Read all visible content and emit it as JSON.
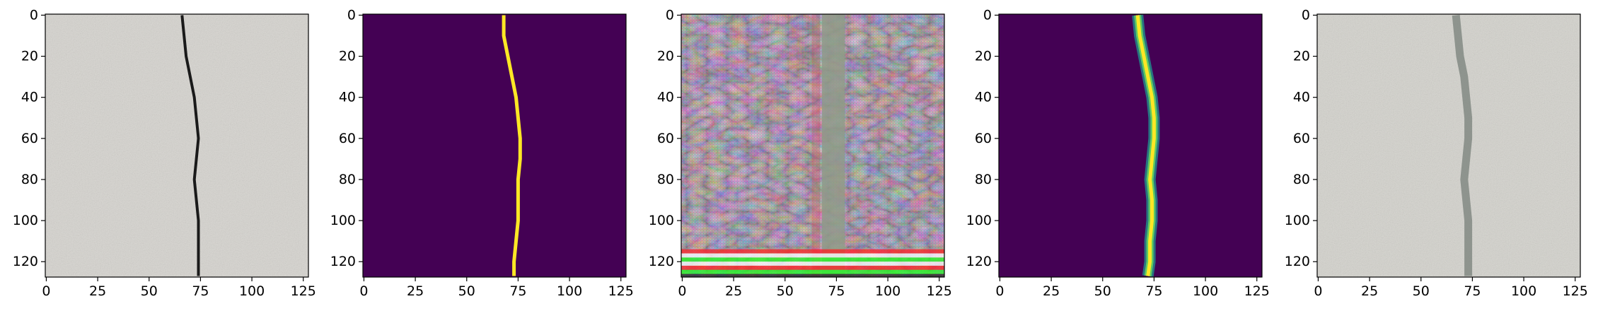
{
  "figure": {
    "panel_count": 5
  },
  "chart_data": [
    {
      "type": "heatmap",
      "content": "grayscale concrete photo with dark crack",
      "xlim": [
        0,
        127
      ],
      "ylim": [
        127,
        0
      ],
      "xticks": [
        0,
        25,
        50,
        75,
        100,
        125
      ],
      "yticks": [
        0,
        20,
        40,
        60,
        80,
        100,
        120
      ],
      "crack_path": [
        [
          66,
          0
        ],
        [
          67,
          10
        ],
        [
          68,
          20
        ],
        [
          70,
          30
        ],
        [
          72,
          40
        ],
        [
          73,
          50
        ],
        [
          74,
          60
        ],
        [
          73,
          70
        ],
        [
          72,
          80
        ],
        [
          73,
          90
        ],
        [
          74,
          100
        ],
        [
          74,
          110
        ],
        [
          74,
          120
        ],
        [
          74,
          127
        ]
      ],
      "colors": {
        "background": "#d6d4cf",
        "crack": "#1a1a1a"
      }
    },
    {
      "type": "heatmap",
      "content": "binary crack mask",
      "xlim": [
        0,
        127
      ],
      "ylim": [
        127,
        0
      ],
      "xticks": [
        0,
        25,
        50,
        75,
        100,
        125
      ],
      "yticks": [
        0,
        20,
        40,
        60,
        80,
        100,
        120
      ],
      "crack_path": [
        [
          68,
          0
        ],
        [
          68,
          10
        ],
        [
          70,
          20
        ],
        [
          72,
          30
        ],
        [
          74,
          40
        ],
        [
          75,
          50
        ],
        [
          76,
          60
        ],
        [
          76,
          70
        ],
        [
          75,
          80
        ],
        [
          75,
          90
        ],
        [
          75,
          100
        ],
        [
          74,
          110
        ],
        [
          73,
          120
        ],
        [
          73,
          127
        ]
      ],
      "colors": {
        "background": "#440154",
        "crack": "#fde725"
      }
    },
    {
      "type": "heatmap",
      "content": "noisy generated texture with vertical band",
      "xlim": [
        0,
        127
      ],
      "ylim": [
        127,
        0
      ],
      "xticks": [
        0,
        25,
        50,
        75,
        100,
        125
      ],
      "yticks": [
        0,
        20,
        40,
        60,
        80,
        100,
        120
      ],
      "band_x": [
        68,
        79
      ],
      "colors": {
        "background": "#a89aa0",
        "band": "#8f9a88",
        "stripe_a": "#ff2020",
        "stripe_b": "#20ff20",
        "stripe_c": "#ffffff"
      }
    },
    {
      "type": "heatmap",
      "content": "predicted crack probability map",
      "xlim": [
        0,
        127
      ],
      "ylim": [
        127,
        0
      ],
      "xticks": [
        0,
        25,
        50,
        75,
        100,
        125
      ],
      "yticks": [
        0,
        20,
        40,
        60,
        80,
        100,
        120
      ],
      "crack_path": [
        [
          67,
          0
        ],
        [
          68,
          10
        ],
        [
          70,
          20
        ],
        [
          72,
          30
        ],
        [
          74,
          40
        ],
        [
          75,
          50
        ],
        [
          75,
          60
        ],
        [
          74,
          70
        ],
        [
          73,
          80
        ],
        [
          74,
          90
        ],
        [
          74,
          100
        ],
        [
          73,
          110
        ],
        [
          73,
          120
        ],
        [
          72,
          127
        ]
      ],
      "colors": {
        "background": "#440154",
        "edge": "#21918c",
        "core": "#fde725"
      }
    },
    {
      "type": "heatmap",
      "content": "grayscale concrete photo with faint band",
      "xlim": [
        0,
        127
      ],
      "ylim": [
        127,
        0
      ],
      "xticks": [
        0,
        25,
        50,
        75,
        100,
        125
      ],
      "yticks": [
        0,
        20,
        40,
        60,
        80,
        100,
        120
      ],
      "crack_path": [
        [
          67,
          0
        ],
        [
          68,
          10
        ],
        [
          69,
          20
        ],
        [
          71,
          30
        ],
        [
          72,
          40
        ],
        [
          73,
          50
        ],
        [
          73,
          60
        ],
        [
          72,
          70
        ],
        [
          71,
          80
        ],
        [
          72,
          90
        ],
        [
          73,
          100
        ],
        [
          73,
          110
        ],
        [
          73,
          120
        ],
        [
          73,
          127
        ]
      ],
      "colors": {
        "background": "#d4d3cd",
        "crack": "#7d857e"
      }
    }
  ]
}
